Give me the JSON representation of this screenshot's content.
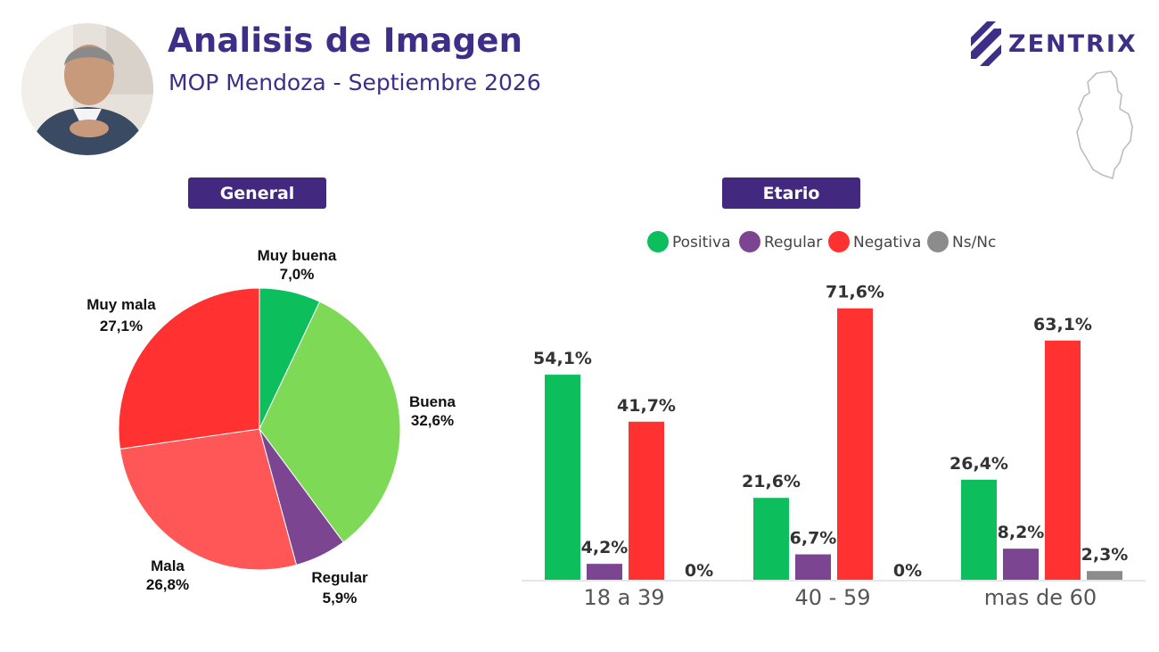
{
  "header": {
    "title": "Analisis de Imagen",
    "subtitle": "MOP Mendoza - Septiembre 2026",
    "brand": "ZENTRIX"
  },
  "sections": {
    "general": "General",
    "etario": "Etario"
  },
  "colors": {
    "brand": "#3f2e88",
    "section_label_bg": "#43287f"
  },
  "icons": [
    "person-photo",
    "zentrix-logo-icon",
    "mendoza-map-icon"
  ],
  "chart_data": [
    {
      "type": "pie",
      "slices": [
        {
          "name": "Muy buena",
          "value": 7.0,
          "label": "7,0%",
          "color": "#0dbf5c"
        },
        {
          "name": "Buena",
          "value": 32.6,
          "label": "32,6%",
          "color": "#7ed957"
        },
        {
          "name": "Regular",
          "value": 5.9,
          "label": "5,9%",
          "color": "#7b4592"
        },
        {
          "name": "Mala",
          "value": 26.8,
          "label": "26,8%",
          "color": "#ff5757"
        },
        {
          "name": "Muy mala",
          "value": 27.1,
          "label": "27,1%",
          "color": "#ff3131"
        }
      ],
      "start_angle_deg": 0,
      "direction": "clockwise"
    },
    {
      "type": "bar",
      "categories": [
        "18 a 39",
        "40 - 59",
        "mas de 60"
      ],
      "series": [
        {
          "name": "Positiva",
          "color": "#0dbf5c",
          "values": [
            54.1,
            21.6,
            26.4
          ],
          "labels": [
            "54,1%",
            "21,6%",
            "26,4%"
          ]
        },
        {
          "name": "Regular",
          "color": "#7b4592",
          "values": [
            4.2,
            6.7,
            8.2
          ],
          "labels": [
            "4,2%",
            "6,7%",
            "8,2%"
          ]
        },
        {
          "name": "Negativa",
          "color": "#ff3131",
          "values": [
            41.7,
            71.6,
            63.1
          ],
          "labels": [
            "41,7%",
            "71,6%",
            "63,1%"
          ]
        },
        {
          "name": "Ns/Nc",
          "color": "#8c8c8c",
          "values": [
            0,
            0,
            2.3
          ],
          "labels": [
            "0%",
            "0%",
            "2,3%"
          ]
        }
      ],
      "legend_position": "top",
      "grid": false,
      "ylim": [
        0,
        80
      ]
    }
  ]
}
